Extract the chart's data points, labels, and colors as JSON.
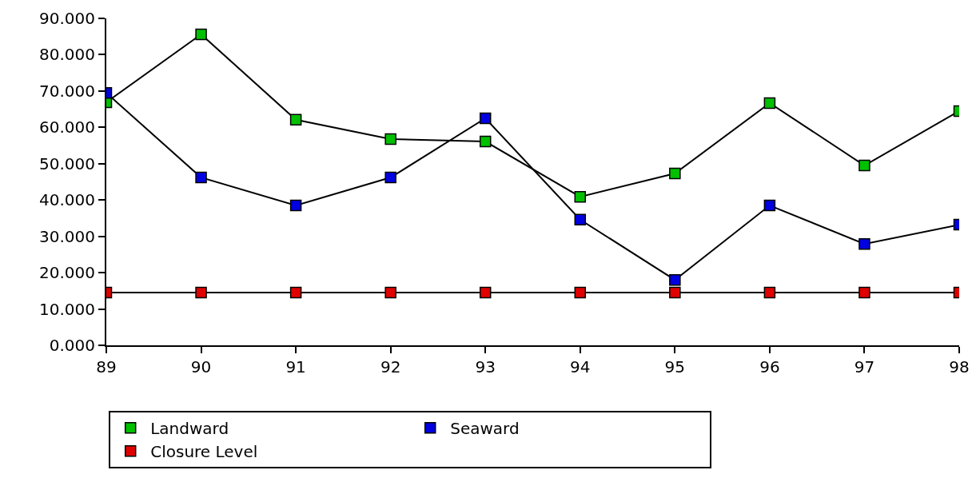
{
  "chart_data": {
    "type": "line",
    "x": [
      89,
      90,
      91,
      92,
      93,
      94,
      95,
      96,
      97,
      98
    ],
    "xlim": [
      89,
      98
    ],
    "xticks": [
      89,
      90,
      91,
      92,
      93,
      94,
      95,
      96,
      97,
      98
    ],
    "ylim": [
      0,
      90
    ],
    "yticks": [
      {
        "value": 0,
        "label": "0.000"
      },
      {
        "value": 10,
        "label": "10.000"
      },
      {
        "value": 20,
        "label": "20.000"
      },
      {
        "value": 30,
        "label": "30.000"
      },
      {
        "value": 40,
        "label": "40.000"
      },
      {
        "value": 50,
        "label": "50.000"
      },
      {
        "value": 60,
        "label": "60.000"
      },
      {
        "value": 70,
        "label": "70.000"
      },
      {
        "value": 80,
        "label": "80.000"
      },
      {
        "value": 90,
        "label": "90.000"
      }
    ],
    "series": [
      {
        "name": "Landward",
        "color": "#00c000",
        "values": [
          66.9,
          85.6,
          62.1,
          56.8,
          56.1,
          40.9,
          47.3,
          66.7,
          49.5,
          64.5
        ]
      },
      {
        "name": "Seaward",
        "color": "#0000e0",
        "values": [
          69.5,
          46.2,
          38.5,
          46.2,
          62.5,
          34.6,
          18.0,
          38.5,
          27.9,
          33.2
        ]
      },
      {
        "name": "Closure Level",
        "color": "#e00000",
        "values": [
          14.5,
          14.5,
          14.5,
          14.5,
          14.5,
          14.5,
          14.5,
          14.5,
          14.5,
          14.5
        ]
      }
    ],
    "grid": false,
    "legend": "bottom",
    "marker": "square",
    "line_style": "solid"
  }
}
